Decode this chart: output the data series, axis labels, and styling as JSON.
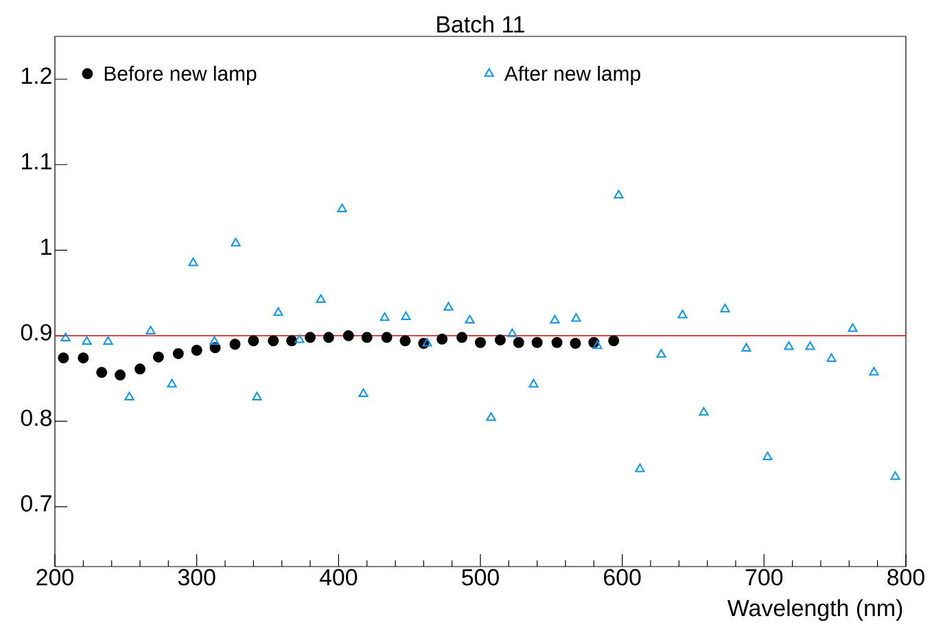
{
  "chart_data": {
    "type": "scatter",
    "title": "Batch 11",
    "xlabel": "Wavelength (nm)",
    "xlim": [
      200,
      800
    ],
    "ylim": [
      0.63,
      1.25
    ],
    "xticks": [
      200,
      300,
      400,
      500,
      600,
      700,
      800
    ],
    "yticks": [
      0.7,
      0.8,
      0.9,
      1,
      1.1,
      1.2
    ],
    "grid": false,
    "legend": "top",
    "ref_lines": [
      {
        "axis": "y",
        "value": 0.9,
        "color": "#ff0000"
      }
    ],
    "series": [
      {
        "name": "Before new lamp",
        "color": "#000000",
        "marker": "circle",
        "x": [
          206,
          220,
          233,
          246,
          260,
          273,
          287,
          300,
          313,
          327,
          340,
          354,
          367,
          380,
          393,
          407,
          420,
          434,
          447,
          460,
          473,
          487,
          500,
          514,
          527,
          540,
          554,
          567,
          580,
          594
        ],
        "values": [
          0.874,
          0.874,
          0.857,
          0.854,
          0.861,
          0.875,
          0.879,
          0.883,
          0.886,
          0.89,
          0.894,
          0.894,
          0.894,
          0.898,
          0.898,
          0.9,
          0.898,
          0.898,
          0.894,
          0.891,
          0.896,
          0.898,
          0.892,
          0.895,
          0.892,
          0.892,
          0.892,
          0.891,
          0.892,
          0.894
        ]
      },
      {
        "name": "After new lamp",
        "color": "#0099ff",
        "marker": "triangle",
        "x": [
          207.5,
          222.5,
          237.5,
          252.5,
          267.5,
          282.5,
          297.5,
          312.5,
          327.5,
          342.5,
          357.5,
          372.5,
          387.5,
          402.5,
          417.5,
          432.5,
          447.5,
          462.5,
          477.5,
          492.5,
          507.5,
          522.5,
          537.5,
          552.5,
          567.5,
          582.5,
          597.5,
          612.5,
          627.5,
          642.5,
          657.5,
          672.5,
          687.5,
          702.5,
          717.5,
          732.5,
          747.5,
          762.5,
          777.5,
          792.5
        ],
        "values": [
          0.897,
          0.893,
          0.893,
          0.828,
          0.905,
          0.843,
          0.985,
          0.893,
          1.008,
          0.828,
          0.927,
          0.895,
          0.942,
          1.048,
          0.832,
          0.921,
          0.922,
          0.891,
          0.933,
          0.918,
          0.804,
          0.902,
          0.843,
          0.918,
          0.92,
          0.888,
          1.064,
          0.744,
          0.878,
          0.924,
          0.81,
          0.931,
          0.885,
          0.758,
          0.887,
          0.887,
          0.873,
          0.908,
          0.857,
          0.735
        ]
      }
    ]
  }
}
